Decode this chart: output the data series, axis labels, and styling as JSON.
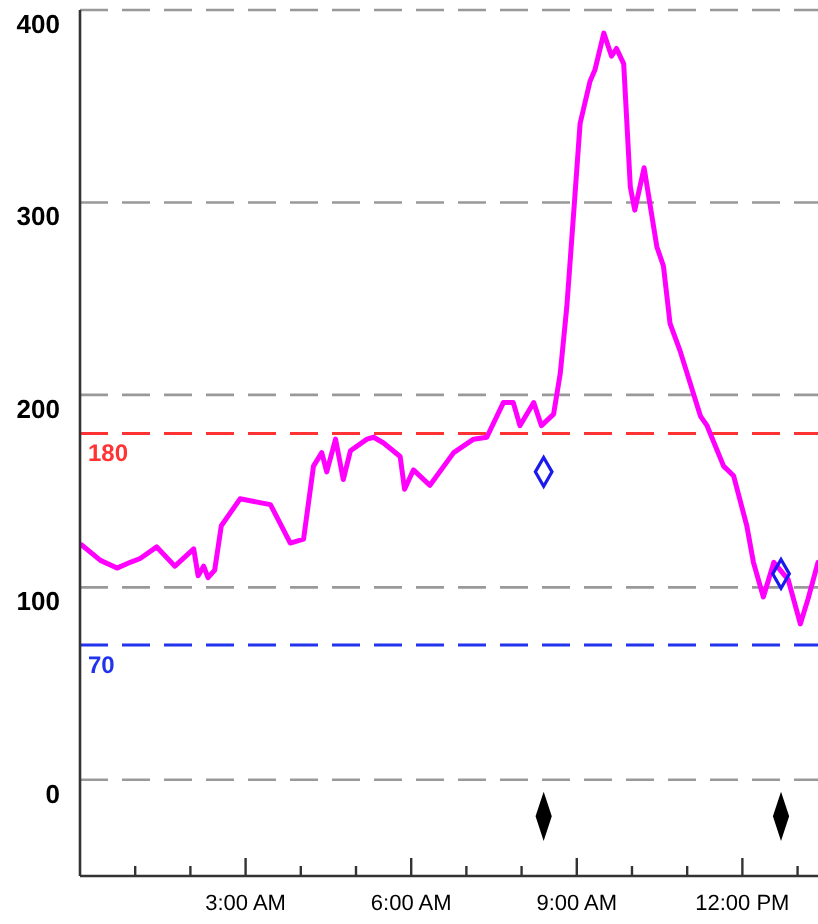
{
  "chart_data": {
    "type": "line",
    "xlim": [
      0,
      13.37
    ],
    "ylim": [
      -50,
      400
    ],
    "xticks": [
      {
        "value": 1,
        "label": null
      },
      {
        "value": 2,
        "label": null
      },
      {
        "value": 3,
        "label": "3:00 AM"
      },
      {
        "value": 4,
        "label": null
      },
      {
        "value": 5,
        "label": null
      },
      {
        "value": 6,
        "label": "6:00 AM"
      },
      {
        "value": 7,
        "label": null
      },
      {
        "value": 8,
        "label": null
      },
      {
        "value": 9,
        "label": "9:00 AM"
      },
      {
        "value": 10,
        "label": null
      },
      {
        "value": 11,
        "label": null
      },
      {
        "value": 12,
        "label": "12:00 PM"
      },
      {
        "value": 13,
        "label": null
      }
    ],
    "yticks": [
      0,
      100,
      200,
      300,
      400
    ],
    "grid": "y",
    "ref_lines": [
      {
        "axis": "y",
        "value": 180,
        "label": "180",
        "color": "#ff3333",
        "line_style": "dashed"
      },
      {
        "axis": "y",
        "value": 70,
        "label": "70",
        "color": "#2233ee",
        "line_style": "dashed"
      }
    ],
    "series": [
      {
        "color": "#ff00ff",
        "marker": "none",
        "line_style": "solid",
        "x": [
          0.03,
          0.37,
          0.67,
          0.91,
          1.09,
          1.39,
          1.72,
          2.06,
          2.14,
          2.24,
          2.32,
          2.44,
          2.56,
          2.9,
          3.45,
          3.81,
          4.05,
          4.23,
          4.38,
          4.47,
          4.63,
          4.77,
          4.9,
          5.2,
          5.32,
          5.5,
          5.8,
          5.88,
          6.04,
          6.34,
          6.77,
          7.13,
          7.37,
          7.67,
          7.85,
          7.97,
          8.22,
          8.36,
          8.58,
          8.7,
          8.82,
          8.96,
          9.06,
          9.24,
          9.33,
          9.49,
          9.63,
          9.72,
          9.85,
          9.97,
          10.05,
          10.22,
          10.45,
          10.57,
          10.69,
          10.87,
          11.24,
          11.36,
          11.66,
          11.84,
          12.08,
          12.2,
          12.38,
          12.57,
          12.83,
          13.05,
          13.19,
          13.37
        ],
        "values": [
          122,
          114,
          110,
          113,
          115,
          121,
          111,
          120,
          106,
          111,
          105,
          109,
          132,
          146,
          143,
          123,
          125,
          163,
          170,
          160,
          177,
          156,
          171,
          177,
          178,
          175,
          168,
          151,
          161,
          153,
          170,
          177,
          178,
          196,
          196,
          184,
          196,
          184,
          190,
          211,
          246,
          301,
          341,
          363,
          369,
          388,
          376,
          380,
          372,
          308,
          296,
          318,
          277,
          267,
          237,
          223,
          189,
          184,
          163,
          158,
          132,
          113,
          95,
          113,
          104,
          81,
          94,
          113
        ]
      },
      {
        "type": "scatter",
        "color": "#1a1aee",
        "marker": "diamond",
        "x": [
          8.4,
          12.7
        ],
        "values": [
          160,
          107
        ]
      },
      {
        "type": "scatter",
        "color": "#000000",
        "marker": "diamond",
        "x": [
          8.4,
          12.7
        ],
        "values": [
          -19,
          -19
        ]
      }
    ]
  }
}
